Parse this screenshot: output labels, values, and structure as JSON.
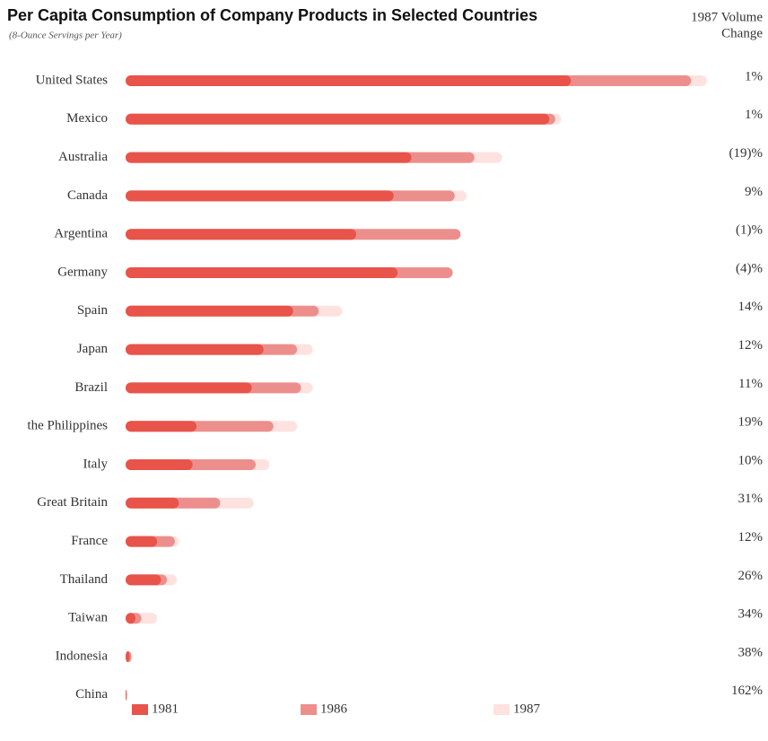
{
  "chart_data": {
    "type": "bar",
    "orientation": "horizontal",
    "title": "Per Capita Consumption of Company Products in Selected Countries",
    "subtitle": "(8-Ounce Servings per Year)",
    "change_header": [
      "1987 Volume",
      "Change"
    ],
    "categories": [
      "United States",
      "Mexico",
      "Australia",
      "Canada",
      "Argentina",
      "Germany",
      "Spain",
      "Japan",
      "Brazil",
      "the Philippines",
      "Italy",
      "Great Britain",
      "France",
      "Thailand",
      "Taiwan",
      "Indonesia",
      "China"
    ],
    "change_labels": [
      "1%",
      "1%",
      "(19)%",
      "9%",
      "(1)%",
      "(4)%",
      "14%",
      "12%",
      "11%",
      "19%",
      "10%",
      "31%",
      "12%",
      "26%",
      "34%",
      "38%",
      "162%"
    ],
    "series": [
      {
        "name": "1981",
        "color": "#e8534a",
        "values": [
          226,
          215,
          145,
          136,
          117,
          138,
          85,
          70,
          64,
          36,
          34,
          27,
          16,
          18,
          5,
          2,
          0.5
        ]
      },
      {
        "name": "1986",
        "color": "#ec8f8c",
        "values": [
          287,
          218,
          177,
          167,
          170,
          166,
          98,
          87,
          89,
          75,
          66,
          48,
          25,
          21,
          8,
          3,
          0.5
        ]
      },
      {
        "name": "1987",
        "color": "#fde2df",
        "values": [
          295,
          221,
          191,
          173,
          167,
          164,
          110,
          95,
          95,
          87,
          73,
          65,
          27,
          26,
          16,
          3,
          1
        ]
      }
    ]
  }
}
